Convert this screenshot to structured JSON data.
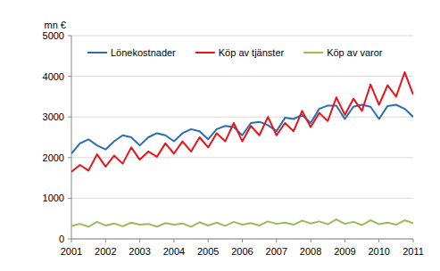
{
  "chart_data": {
    "type": "line",
    "y_label": "mn €",
    "categories": [
      "2001",
      null,
      null,
      null,
      "2002",
      null,
      null,
      null,
      "2003",
      null,
      null,
      null,
      "2004",
      null,
      null,
      null,
      "2005",
      null,
      null,
      null,
      "2006",
      null,
      null,
      null,
      "2007",
      null,
      null,
      null,
      "2008",
      null,
      null,
      null,
      "2009",
      null,
      null,
      null,
      "2010",
      null,
      null,
      null,
      "2011"
    ],
    "series": [
      {
        "name": "Lönekostnader",
        "color": "#2a6db5",
        "values": [
          2100,
          2350,
          2450,
          2300,
          2200,
          2400,
          2550,
          2500,
          2300,
          2500,
          2600,
          2550,
          2400,
          2600,
          2700,
          2650,
          2450,
          2700,
          2780,
          2750,
          2550,
          2850,
          2880,
          2800,
          2650,
          2980,
          2950,
          3050,
          2850,
          3200,
          3280,
          3280,
          2950,
          3250,
          3300,
          3250,
          2950,
          3270,
          3300,
          3200,
          3000
        ]
      },
      {
        "name": "Köp av tjänster",
        "color": "#e8141b",
        "values": [
          1650,
          1820,
          1680,
          2080,
          1780,
          2050,
          1850,
          2250,
          1950,
          2150,
          2020,
          2350,
          2100,
          2400,
          2150,
          2500,
          2250,
          2600,
          2400,
          2850,
          2400,
          2780,
          2550,
          3000,
          2550,
          2850,
          2650,
          3150,
          2750,
          3100,
          2900,
          3480,
          3050,
          3450,
          3150,
          3800,
          3300,
          3780,
          3500,
          4100,
          3550
        ]
      },
      {
        "name": "Köp av varor",
        "color": "#9bbb59",
        "values": [
          320,
          370,
          300,
          420,
          330,
          380,
          310,
          400,
          350,
          370,
          300,
          390,
          350,
          380,
          300,
          410,
          330,
          400,
          320,
          420,
          350,
          390,
          330,
          430,
          370,
          400,
          350,
          450,
          380,
          430,
          360,
          480,
          370,
          420,
          340,
          460,
          360,
          400,
          350,
          460,
          380
        ]
      }
    ],
    "ylim": [
      0,
      5000
    ],
    "yticks": [
      0,
      1000,
      2000,
      3000,
      4000,
      5000
    ],
    "grid": true,
    "legend": "top"
  }
}
